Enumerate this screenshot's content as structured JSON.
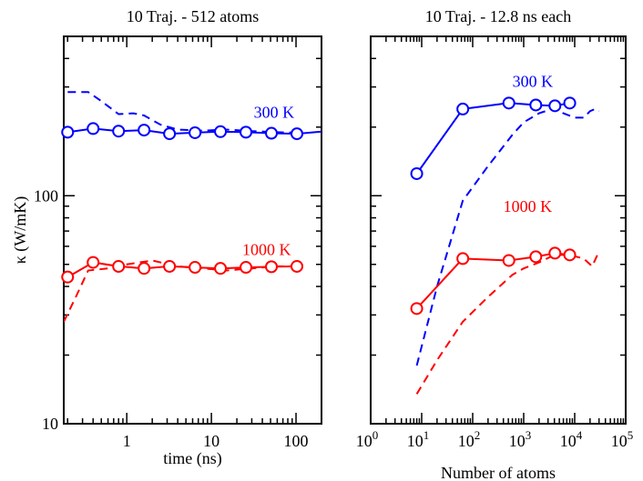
{
  "colors": {
    "hot": "#ff0000",
    "cold": "#0000ff",
    "axis": "#000000"
  },
  "ylabel": "κ (W/mK)",
  "chart_data": [
    {
      "type": "line",
      "title": "10 Traj. - 512 atoms",
      "xlabel": "time (ns)",
      "xscale": "log",
      "yscale": "log",
      "xlim": [
        0.18,
        200
      ],
      "ylim": [
        10,
        500
      ],
      "xticks": [
        {
          "v": 1,
          "label": "1"
        },
        {
          "v": 10,
          "label": "10"
        },
        {
          "v": 100,
          "label": "100"
        }
      ],
      "yticks": [
        {
          "v": 10,
          "label": "10"
        },
        {
          "v": 100,
          "label": "100"
        }
      ],
      "annotations": [
        {
          "text": "300 K",
          "color": "cold",
          "x": 55,
          "y": 220
        },
        {
          "text": "1000 K",
          "color": "hot",
          "x": 45,
          "y": 55
        }
      ],
      "series": [
        {
          "name": "300 K",
          "color": "cold",
          "style": "solid",
          "markers": true,
          "x": [
            0.2,
            0.4,
            0.8,
            1.6,
            3.2,
            6.4,
            12.8,
            25.6,
            51.2,
            102.4,
            200
          ],
          "y": [
            190,
            197,
            192,
            194,
            187,
            189,
            191,
            190,
            188,
            187,
            191
          ],
          "marker_count": 10
        },
        {
          "name": "300 K (dashed)",
          "color": "cold",
          "style": "dashed",
          "markers": false,
          "x": [
            0.2,
            0.35,
            0.5,
            0.8,
            1.2,
            1.6,
            2.5,
            4,
            8,
            15,
            30,
            60,
            100
          ],
          "y": [
            285,
            285,
            260,
            228,
            230,
            225,
            205,
            195,
            193,
            195,
            192,
            190,
            189
          ]
        },
        {
          "name": "1000 K",
          "color": "hot",
          "style": "solid",
          "markers": true,
          "x": [
            0.2,
            0.4,
            0.8,
            1.6,
            3.2,
            6.4,
            12.8,
            25.6,
            51.2,
            102.4
          ],
          "y": [
            44,
            51,
            49,
            48,
            49,
            48.5,
            48,
            48.5,
            48.8,
            49
          ]
        },
        {
          "name": "1000 K (dashed)",
          "color": "hot",
          "style": "dashed",
          "markers": false,
          "x": [
            0.18,
            0.25,
            0.35,
            0.6,
            1,
            2,
            4,
            8,
            15,
            30,
            60,
            100
          ],
          "y": [
            28,
            36,
            47,
            48,
            50,
            52,
            49,
            48,
            47,
            48,
            49,
            49
          ]
        }
      ]
    },
    {
      "type": "line",
      "title": "10 Traj. - 12.8 ns each",
      "xlabel": "Number of atoms",
      "xscale": "log",
      "yscale": "log",
      "xlim": [
        1,
        100000
      ],
      "ylim": [
        10,
        500
      ],
      "xticks": [
        {
          "v": 1,
          "label": "10",
          "exp": "0"
        },
        {
          "v": 10,
          "label": "10",
          "exp": "1"
        },
        {
          "v": 100,
          "label": "10",
          "exp": "2"
        },
        {
          "v": 1000,
          "label": "10",
          "exp": "3"
        },
        {
          "v": 10000,
          "label": "10",
          "exp": "4"
        },
        {
          "v": 100000,
          "label": "10",
          "exp": "5"
        }
      ],
      "annotations": [
        {
          "text": "300 K",
          "color": "cold",
          "x": 1500,
          "y": 300
        },
        {
          "text": "1000 K",
          "color": "hot",
          "x": 1200,
          "y": 85
        }
      ],
      "series": [
        {
          "name": "300 K",
          "color": "cold",
          "style": "solid",
          "markers": true,
          "x": [
            8,
            64,
            512,
            1728,
            4096,
            8000
          ],
          "y": [
            125,
            240,
            255,
            250,
            248,
            255
          ]
        },
        {
          "name": "300 K (dashed)",
          "color": "cold",
          "style": "dashed",
          "markers": false,
          "x": [
            8,
            20,
            64,
            200,
            600,
            1000,
            2000,
            4000,
            6000,
            10000,
            15000,
            20000,
            25000,
            30000
          ],
          "y": [
            18,
            40,
            95,
            135,
            185,
            210,
            230,
            242,
            230,
            220,
            220,
            235,
            240,
            235
          ]
        },
        {
          "name": "1000 K",
          "color": "hot",
          "style": "solid",
          "markers": true,
          "x": [
            8,
            64,
            512,
            1728,
            4096,
            8000
          ],
          "y": [
            32,
            53,
            52,
            54,
            56,
            55
          ]
        },
        {
          "name": "1000 K (dashed)",
          "color": "hot",
          "style": "dashed",
          "markers": false,
          "x": [
            8,
            20,
            64,
            200,
            600,
            1000,
            2000,
            4000,
            8000,
            15000,
            22000,
            30000
          ],
          "y": [
            13.5,
            19,
            28,
            36,
            45,
            48,
            51,
            55,
            55,
            53,
            49,
            57
          ]
        }
      ]
    }
  ]
}
